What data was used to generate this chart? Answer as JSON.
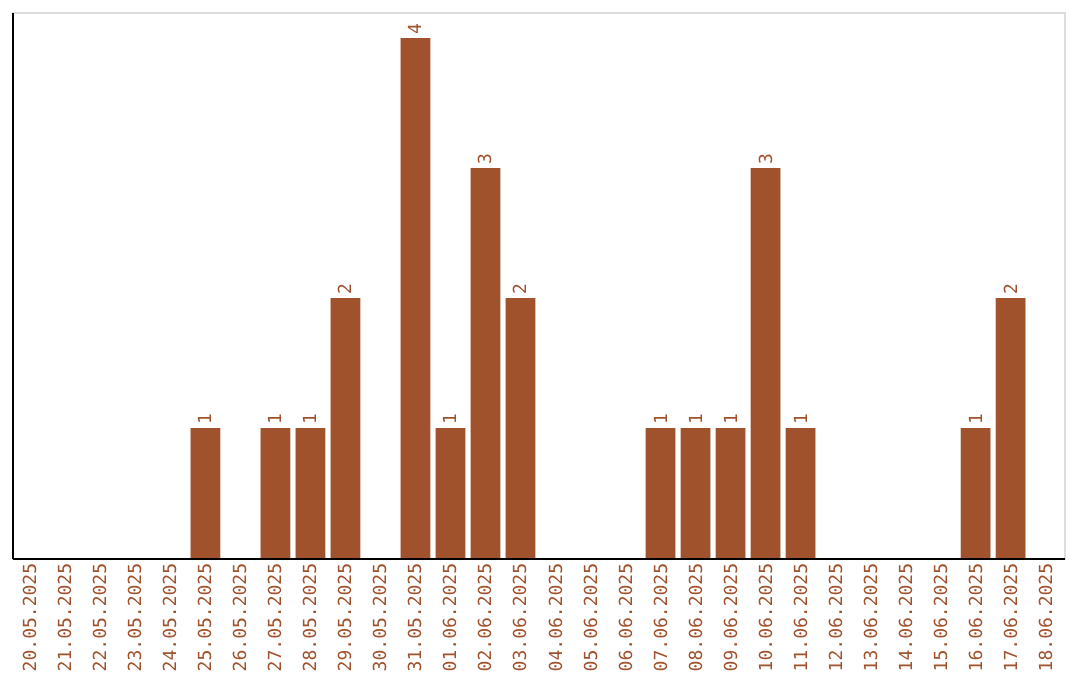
{
  "chart_data": {
    "type": "bar",
    "categories": [
      "20.05.2025",
      "21.05.2025",
      "22.05.2025",
      "23.05.2025",
      "24.05.2025",
      "25.05.2025",
      "26.05.2025",
      "27.05.2025",
      "28.05.2025",
      "29.05.2025",
      "30.05.2025",
      "31.05.2025",
      "01.06.2025",
      "02.06.2025",
      "03.06.2025",
      "04.06.2025",
      "05.06.2025",
      "06.06.2025",
      "07.06.2025",
      "08.06.2025",
      "09.06.2025",
      "10.06.2025",
      "11.06.2025",
      "12.06.2025",
      "13.06.2025",
      "14.06.2025",
      "15.06.2025",
      "16.06.2025",
      "17.06.2025",
      "18.06.2025"
    ],
    "values": [
      0,
      0,
      0,
      0,
      0,
      1,
      0,
      1,
      1,
      2,
      0,
      4,
      1,
      3,
      2,
      0,
      0,
      0,
      1,
      1,
      1,
      3,
      1,
      0,
      0,
      0,
      0,
      1,
      2,
      0
    ],
    "value_labels": [
      null,
      null,
      null,
      null,
      null,
      "1",
      null,
      "1",
      "1",
      "2",
      null,
      "4",
      "1",
      "3",
      "2",
      null,
      null,
      null,
      "1",
      "1",
      "1",
      "3",
      "1",
      null,
      null,
      null,
      null,
      "1",
      "2",
      null
    ],
    "color": "#a0522d",
    "ylim": [
      0,
      4.2
    ],
    "tick_labels": "x",
    "grid": false
  }
}
